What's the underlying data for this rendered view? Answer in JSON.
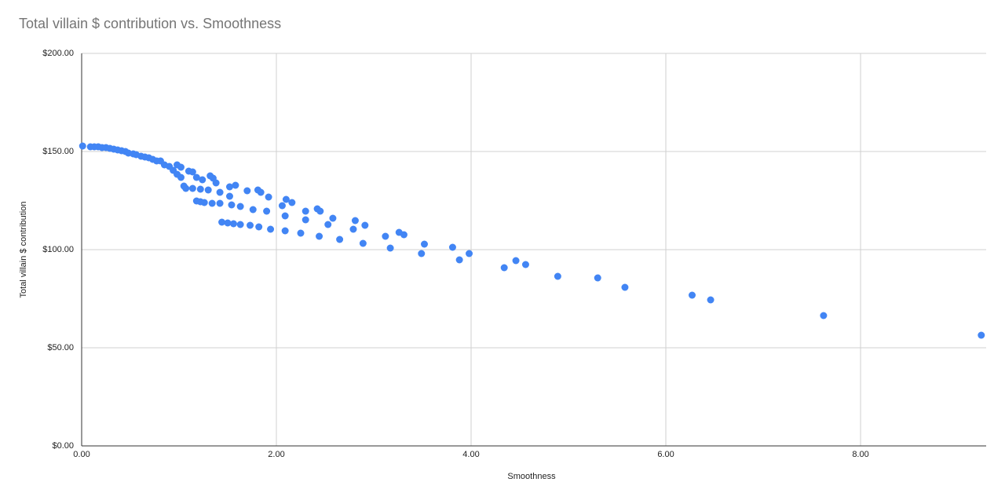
{
  "chart_data": {
    "type": "scatter",
    "title": "Total villain $ contribution vs. Smoothness",
    "x_label": "Smoothness",
    "y_label": "Total villain $ contribution",
    "color": "#4285f4",
    "grid": true,
    "xlim": [
      0,
      9.29
    ],
    "ylim": [
      0,
      200
    ],
    "xticks": [
      {
        "value": 0,
        "label": "0.00"
      },
      {
        "value": 2,
        "label": "2.00"
      },
      {
        "value": 4,
        "label": "4.00"
      },
      {
        "value": 6,
        "label": "6.00"
      },
      {
        "value": 8,
        "label": "8.00"
      }
    ],
    "yticks": [
      {
        "value": 0,
        "label": "$0.00"
      },
      {
        "value": 50,
        "label": "$50.00"
      },
      {
        "value": 100,
        "label": "$100.00"
      },
      {
        "value": 150,
        "label": "$150.00"
      },
      {
        "value": 200,
        "label": "$200.00"
      }
    ],
    "x": [
      0.01,
      0.09,
      0.13,
      0.17,
      0.21,
      0.25,
      0.29,
      0.33,
      0.37,
      0.41,
      0.45,
      0.48,
      0.53,
      0.56,
      0.61,
      0.65,
      0.69,
      0.73,
      0.77,
      0.81,
      0.85,
      0.9,
      0.94,
      0.98,
      1.02,
      0.98,
      1.02,
      1.05,
      1.07,
      1.1,
      1.14,
      1.14,
      1.18,
      1.18,
      1.22,
      1.22,
      1.24,
      1.26,
      1.3,
      1.32,
      1.35,
      1.34,
      1.38,
      1.42,
      1.42,
      1.44,
      1.5,
      1.52,
      1.52,
      1.54,
      1.56,
      1.58,
      1.63,
      1.63,
      1.7,
      1.73,
      1.76,
      1.81,
      1.82,
      1.84,
      1.9,
      1.92,
      1.94,
      2.06,
      2.09,
      2.1,
      2.09,
      2.16,
      2.25,
      2.3,
      2.3,
      2.42,
      2.44,
      2.45,
      2.53,
      2.58,
      2.65,
      2.79,
      2.81,
      2.89,
      2.91,
      3.12,
      3.17,
      3.26,
      3.31,
      3.49,
      3.52,
      3.81,
      3.88,
      3.98,
      4.34,
      4.46,
      4.56,
      4.89,
      5.3,
      5.58,
      6.27,
      6.46,
      7.62,
      9.24
    ],
    "values": [
      152.8,
      152.4,
      152.4,
      152.4,
      152.0,
      152.0,
      151.6,
      151.2,
      150.8,
      150.4,
      150.0,
      149.2,
      148.8,
      148.4,
      147.6,
      147.2,
      146.8,
      146.0,
      145.2,
      145.2,
      143.2,
      142.4,
      140.4,
      143.2,
      142.0,
      138.4,
      136.8,
      132.4,
      131.2,
      140.0,
      139.6,
      131.2,
      136.8,
      124.8,
      130.8,
      124.4,
      135.6,
      124.0,
      130.4,
      137.6,
      136.4,
      123.6,
      134.0,
      129.2,
      123.6,
      114.0,
      113.6,
      132.0,
      127.2,
      122.8,
      113.2,
      132.8,
      122.0,
      112.8,
      130.0,
      112.4,
      120.4,
      130.4,
      111.6,
      129.2,
      119.6,
      126.8,
      110.4,
      122.4,
      109.6,
      125.6,
      117.2,
      124.0,
      108.4,
      119.6,
      115.2,
      120.8,
      106.8,
      119.6,
      112.8,
      116.0,
      105.2,
      110.4,
      114.8,
      103.2,
      112.4,
      106.8,
      100.8,
      108.8,
      107.6,
      98.0,
      102.8,
      101.2,
      94.8,
      98.0,
      90.8,
      94.4,
      92.4,
      86.4,
      85.6,
      80.8,
      76.8,
      74.4,
      66.4,
      56.4
    ]
  }
}
